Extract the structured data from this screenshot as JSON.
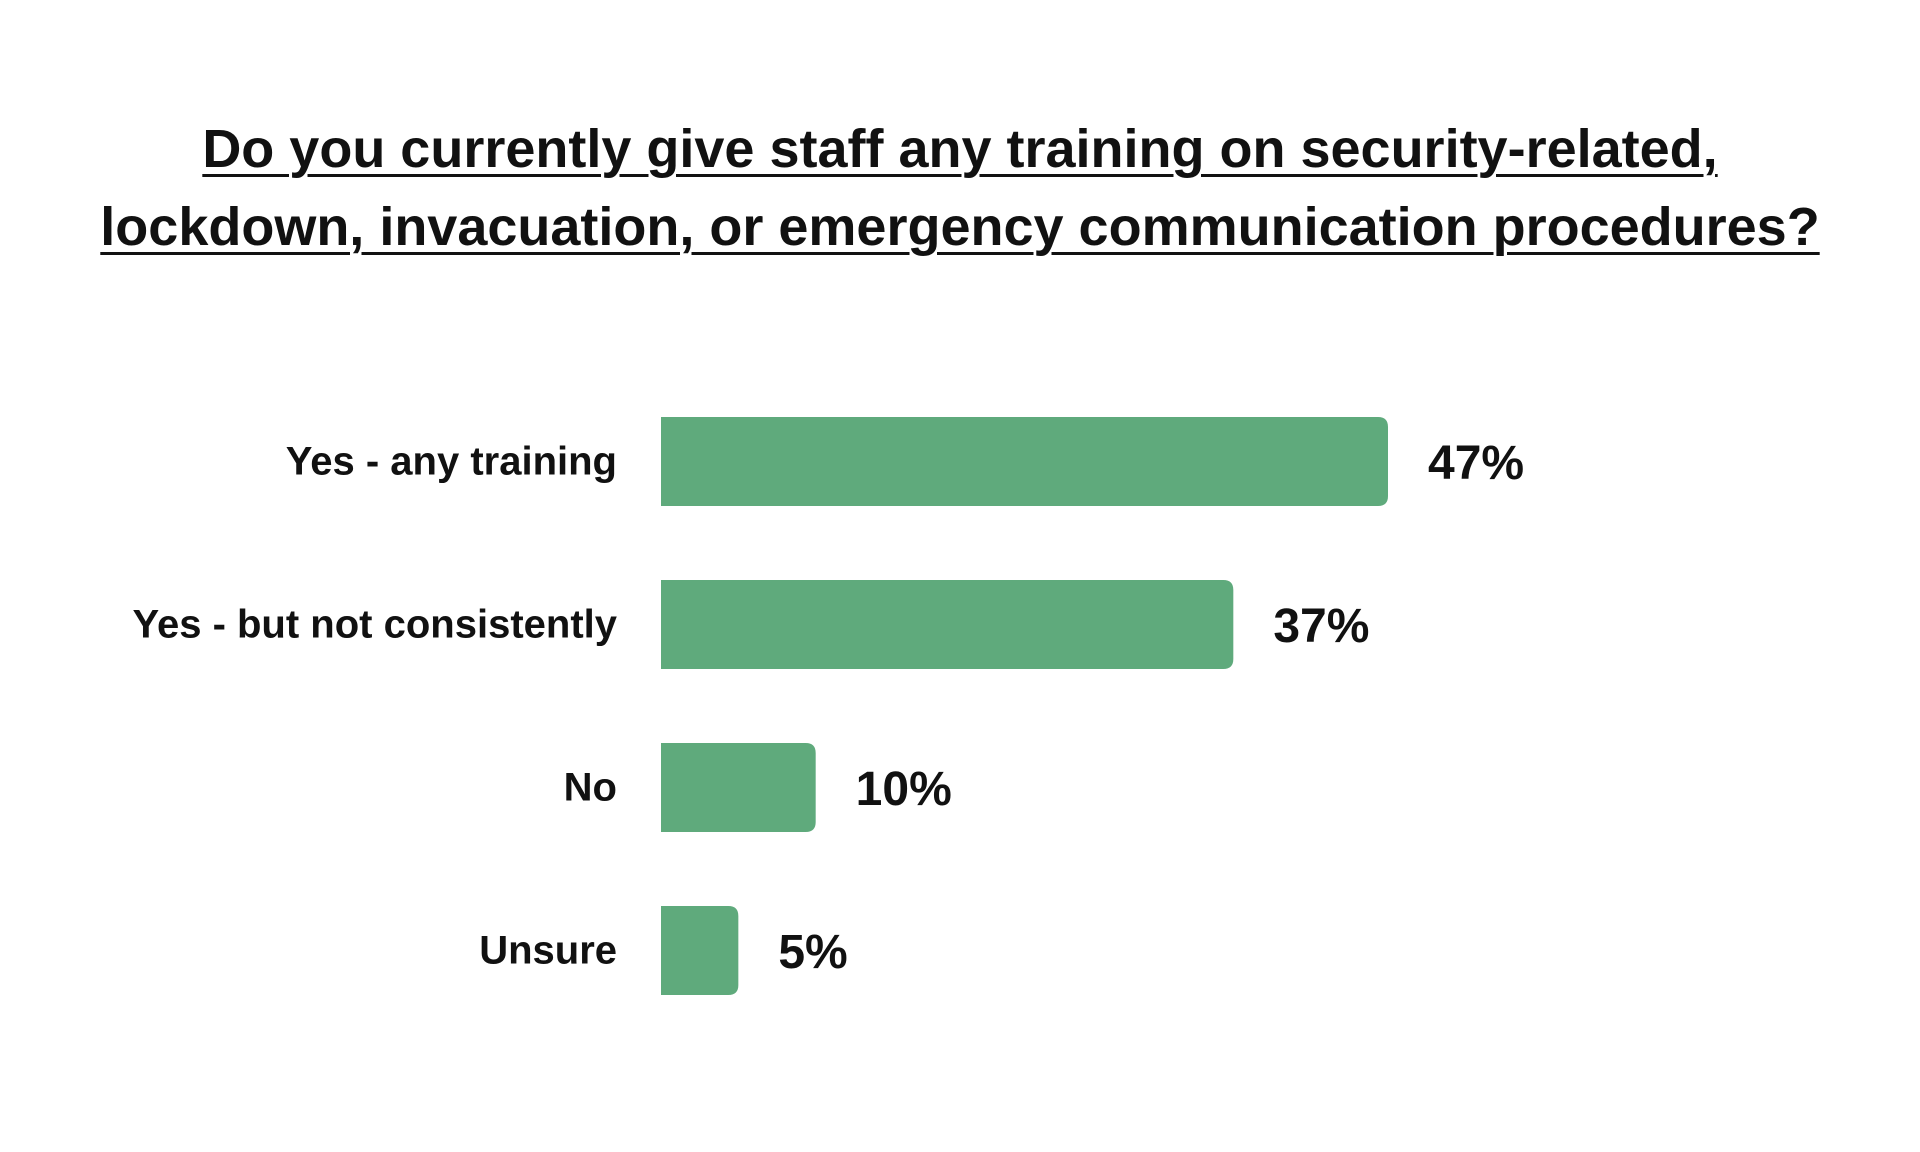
{
  "chart_data": {
    "type": "bar",
    "orientation": "horizontal",
    "title": "Do you currently give staff any training on security-related, lockdown, invacuation, or emergency communication procedures?",
    "title_lines": [
      "Do you currently give staff any training on security-related,",
      "lockdown, invacuation, or emergency communication procedures?"
    ],
    "categories": [
      "Yes - any training",
      "Yes - but not consistently",
      "No",
      "Unsure"
    ],
    "values": [
      47,
      37,
      10,
      5
    ],
    "value_labels": [
      "47%",
      "37%",
      "10%",
      "5%"
    ],
    "unit": "%",
    "xlim": [
      0,
      47
    ],
    "grid": false,
    "legend": "none",
    "bar_color": "#5faa7c"
  }
}
